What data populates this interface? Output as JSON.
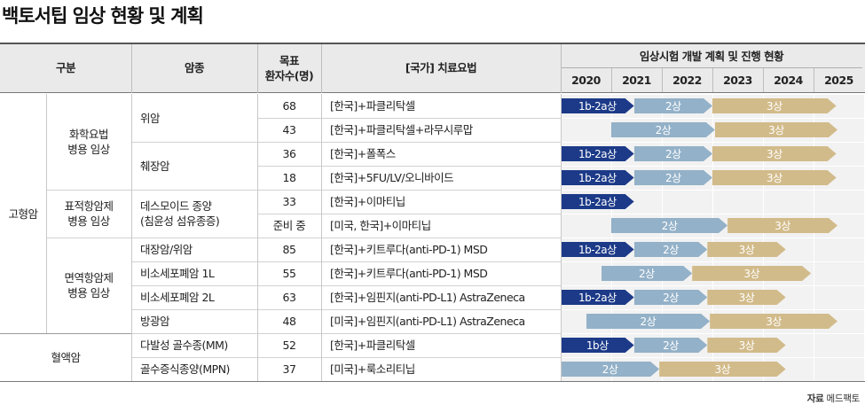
{
  "title": "백토서팁 임상 현황 및 계획",
  "headers": {
    "category": "구분",
    "cancer": "암종",
    "target": "목표\n환자수(명)",
    "therapy": "[국가] 치료요법",
    "plan": "임상시험 개발 계획 및 진행 현황",
    "years": [
      "2020",
      "2021",
      "2022",
      "2023",
      "2024",
      "2025"
    ]
  },
  "groups": [
    {
      "label": "고형암",
      "rows": [
        0,
        9
      ]
    },
    {
      "label": "혈액암",
      "rows": [
        10,
        11
      ]
    }
  ],
  "subgroups": [
    {
      "label": "화학요법\n병용 임상",
      "rows": [
        0,
        3
      ]
    },
    {
      "label": "표적항암제\n병용 임상",
      "rows": [
        4,
        5
      ]
    },
    {
      "label": "면역항암제\n병용 임상",
      "rows": [
        6,
        9
      ]
    }
  ],
  "cancers": [
    {
      "label": "위암",
      "rows": [
        0,
        1
      ]
    },
    {
      "label": "췌장암",
      "rows": [
        2,
        3
      ]
    },
    {
      "label": "데스모이드 종양\n(침윤성 섬유종증)",
      "rows": [
        4,
        5
      ]
    },
    {
      "label": "대장암/위암",
      "rows": [
        6,
        6
      ]
    },
    {
      "label": "비소세포폐암 1L",
      "rows": [
        7,
        7
      ]
    },
    {
      "label": "비소세포폐암 2L",
      "rows": [
        8,
        8
      ]
    },
    {
      "label": "방광암",
      "rows": [
        9,
        9
      ]
    },
    {
      "label": "다발성 골수종(MM)",
      "rows": [
        10,
        10
      ]
    },
    {
      "label": "골수증식종양(MPN)",
      "rows": [
        11,
        11
      ]
    }
  ],
  "rows": [
    {
      "target": "68",
      "therapy": "[한국]+파클리탁셀",
      "bars": [
        {
          "phase": "1b-2a상",
          "start": 2020.0,
          "end": 2021.45,
          "kind": "b1"
        },
        {
          "phase": "2상",
          "start": 2021.45,
          "end": 2023.0,
          "kind": "b2"
        },
        {
          "phase": "3상",
          "start": 2023.0,
          "end": 2025.45,
          "kind": "b3"
        }
      ]
    },
    {
      "target": "43",
      "therapy": "[한국]+파클리탁셀+라무시루맙",
      "bars": [
        {
          "phase": "2상",
          "start": 2021.0,
          "end": 2023.05,
          "kind": "b2"
        },
        {
          "phase": "3상",
          "start": 2023.05,
          "end": 2025.95,
          "kind": "b3"
        }
      ]
    },
    {
      "target": "36",
      "therapy": "[한국]+폴폭스",
      "bars": [
        {
          "phase": "1b-2a상",
          "start": 2020.0,
          "end": 2021.45,
          "kind": "b1"
        },
        {
          "phase": "2상",
          "start": 2021.45,
          "end": 2023.0,
          "kind": "b2"
        },
        {
          "phase": "3상",
          "start": 2023.0,
          "end": 2025.45,
          "kind": "b3"
        }
      ]
    },
    {
      "target": "18",
      "therapy": "[한국]+5FU/LV/오니바이드",
      "bars": [
        {
          "phase": "1b-2a상",
          "start": 2020.0,
          "end": 2021.45,
          "kind": "b1"
        },
        {
          "phase": "2상",
          "start": 2021.45,
          "end": 2023.0,
          "kind": "b2"
        },
        {
          "phase": "3상",
          "start": 2023.0,
          "end": 2025.45,
          "kind": "b3"
        }
      ]
    },
    {
      "target": "33",
      "therapy": "[한국]+이마티닙",
      "bars": [
        {
          "phase": "1b-2a상",
          "start": 2020.0,
          "end": 2021.45,
          "kind": "b1"
        }
      ]
    },
    {
      "target": "준비 중",
      "therapy": "[미국, 한국]+이마티닙",
      "bars": [
        {
          "phase": "2상",
          "start": 2021.0,
          "end": 2023.3,
          "kind": "b2"
        },
        {
          "phase": "3상",
          "start": 2023.3,
          "end": 2025.95,
          "kind": "b3"
        }
      ]
    },
    {
      "target": "85",
      "therapy": "[한국]+키트루다(anti-PD-1) MSD",
      "bars": [
        {
          "phase": "1b-2a상",
          "start": 2020.0,
          "end": 2021.45,
          "kind": "b1"
        },
        {
          "phase": "2상",
          "start": 2021.45,
          "end": 2022.9,
          "kind": "b2"
        },
        {
          "phase": "3상",
          "start": 2022.9,
          "end": 2024.45,
          "kind": "b3"
        }
      ]
    },
    {
      "target": "55",
      "therapy": "[한국]+키트루다(anti-PD-1) MSD",
      "bars": [
        {
          "phase": "2상",
          "start": 2020.8,
          "end": 2022.6,
          "kind": "b2"
        },
        {
          "phase": "3상",
          "start": 2022.6,
          "end": 2024.95,
          "kind": "b3"
        }
      ]
    },
    {
      "target": "63",
      "therapy": "[한국]+임핀지(anti-PD-L1) AstraZeneca",
      "bars": [
        {
          "phase": "1b-2a상",
          "start": 2020.0,
          "end": 2021.45,
          "kind": "b1"
        },
        {
          "phase": "2상",
          "start": 2021.45,
          "end": 2022.9,
          "kind": "b2"
        },
        {
          "phase": "3상",
          "start": 2022.9,
          "end": 2024.45,
          "kind": "b3"
        }
      ]
    },
    {
      "target": "48",
      "therapy": "[미국]+임핀지(anti-PD-L1) AstraZeneca",
      "bars": [
        {
          "phase": "2상",
          "start": 2020.5,
          "end": 2022.95,
          "kind": "b2"
        },
        {
          "phase": "3상",
          "start": 2022.95,
          "end": 2025.95,
          "kind": "b3"
        }
      ]
    },
    {
      "target": "52",
      "therapy": "[한국]+파클리탁셀",
      "bars": [
        {
          "phase": "1b상",
          "start": 2020.0,
          "end": 2021.45,
          "kind": "b1"
        },
        {
          "phase": "2상",
          "start": 2021.45,
          "end": 2022.9,
          "kind": "b2"
        },
        {
          "phase": "3상",
          "start": 2022.9,
          "end": 2024.45,
          "kind": "b3"
        }
      ]
    },
    {
      "target": "37",
      "therapy": "[미국]+룩소리티닙",
      "bars": [
        {
          "phase": "2상",
          "start": 2020.0,
          "end": 2021.95,
          "kind": "b2"
        },
        {
          "phase": "3상",
          "start": 2021.95,
          "end": 2024.45,
          "kind": "b3"
        }
      ]
    }
  ],
  "source": {
    "label": "자료",
    "value": "메드팩토"
  },
  "colors": {
    "phase1": "#1c3a88",
    "phase2": "#93b1c8",
    "phase3": "#d2bb8a",
    "header_bg": "#eaeaea"
  }
}
